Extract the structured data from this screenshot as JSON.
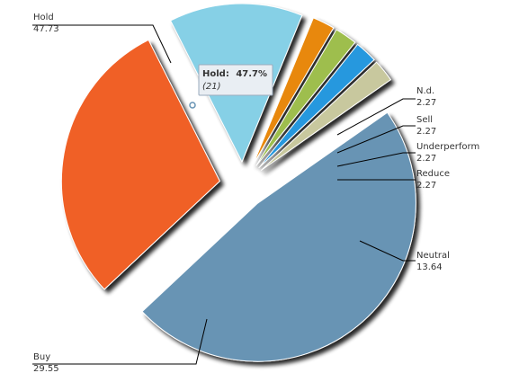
{
  "chart_data": {
    "type": "pie",
    "slices": [
      {
        "label": "Hold",
        "value": 47.73,
        "value_text": "47.73",
        "color": "#6894b4"
      },
      {
        "label": "Buy",
        "value": 29.55,
        "value_text": "29.55",
        "color": "#f06028"
      },
      {
        "label": "Neutral",
        "value": 13.64,
        "value_text": "13.64",
        "color": "#86d0e6"
      },
      {
        "label": "Reduce",
        "value": 2.27,
        "value_text": "2.27",
        "color": "#e8880c"
      },
      {
        "label": "Underperform",
        "value": 2.27,
        "value_text": "2.27",
        "color": "#9ebe4e"
      },
      {
        "label": "Sell",
        "value": 2.27,
        "value_text": "2.27",
        "color": "#2598de"
      },
      {
        "label": "N.d.",
        "value": 2.27,
        "value_text": "2.27",
        "color": "#c8c89e"
      }
    ],
    "tooltip": {
      "slice": "Hold",
      "label": "Hold:",
      "percent": "47.7%",
      "count": "(21)"
    }
  }
}
